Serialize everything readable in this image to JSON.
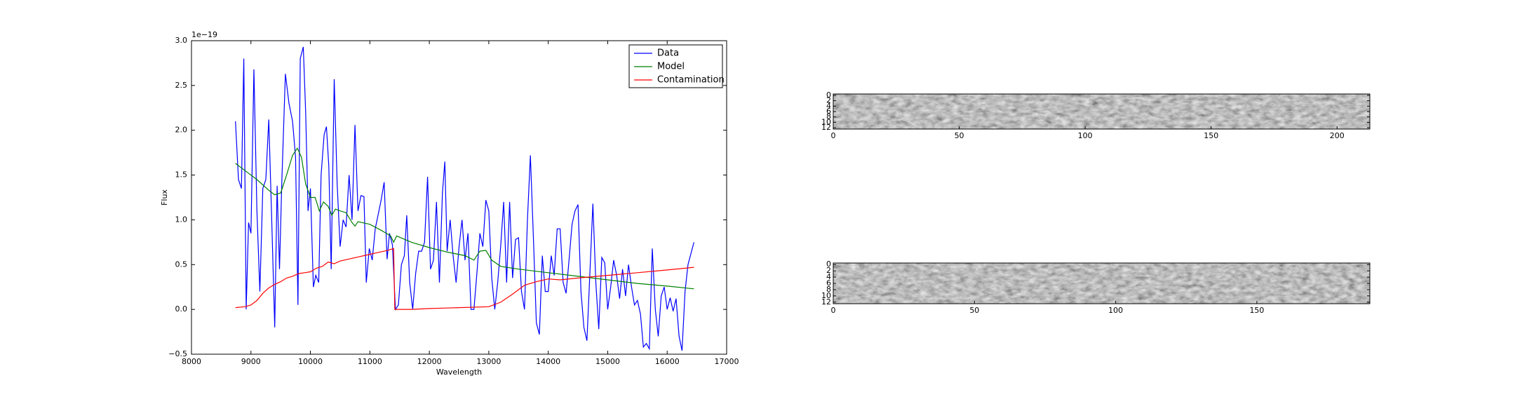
{
  "chart_data": [
    {
      "type": "line",
      "xlabel": "Wavelength",
      "ylabel": "Flux",
      "offset_label": "1e−19",
      "xlim": [
        8000,
        17000
      ],
      "ylim": [
        -0.5,
        3.0
      ],
      "xticks": [
        8000,
        9000,
        10000,
        11000,
        12000,
        13000,
        14000,
        15000,
        16000,
        17000
      ],
      "yticks": [
        {
          "value": -0.5,
          "label": "−0.5"
        },
        {
          "value": 0,
          "label": "0.0"
        },
        0.5,
        {
          "value": 1,
          "label": "1.0"
        },
        1.5,
        {
          "value": 2,
          "label": "2.0"
        },
        2.5,
        {
          "value": 3,
          "label": "3.0"
        }
      ],
      "legend": "upper right",
      "series": [
        {
          "name": "Data",
          "color": "#0000ff",
          "x": [
            8740,
            8790,
            8840,
            8880,
            8920,
            8960,
            9000,
            9050,
            9100,
            9150,
            9200,
            9250,
            9300,
            9350,
            9400,
            9440,
            9480,
            9520,
            9580,
            9640,
            9700,
            9750,
            9790,
            9830,
            9880,
            9920,
            9960,
            10000,
            10050,
            10090,
            10140,
            10180,
            10230,
            10270,
            10310,
            10350,
            10400,
            10450,
            10500,
            10550,
            10600,
            10650,
            10700,
            10750,
            10800,
            10850,
            10900,
            10940,
            10990,
            11040,
            11090,
            11140,
            11190,
            11240,
            11290,
            11330,
            11380,
            11430,
            11480,
            11530,
            11580,
            11620,
            11670,
            11720,
            11770,
            11820,
            11870,
            11920,
            11970,
            12020,
            12070,
            12120,
            12170,
            12220,
            12260,
            12300,
            12350,
            12400,
            12450,
            12500,
            12550,
            12600,
            12650,
            12700,
            12750,
            12800,
            12850,
            12900,
            12950,
            13000,
            13050,
            13100,
            13150,
            13200,
            13250,
            13300,
            13350,
            13400,
            13450,
            13500,
            13550,
            13600,
            13650,
            13700,
            13750,
            13800,
            13850,
            13900,
            13950,
            14000,
            14050,
            14100,
            14150,
            14200,
            14250,
            14300,
            14350,
            14400,
            14450,
            14500,
            14550,
            14600,
            14650,
            14700,
            14750,
            14800,
            14850,
            14900,
            14950,
            15000,
            15050,
            15100,
            15150,
            15200,
            15250,
            15300,
            15350,
            15400,
            15450,
            15500,
            15550,
            15600,
            15650,
            15700,
            15750,
            15800,
            15850,
            15900,
            15950,
            16000,
            16050,
            16100,
            16150,
            16200,
            16250,
            16300,
            16350,
            16450
          ],
          "values": [
            2.1,
            1.45,
            1.35,
            2.8,
            0.0,
            0.97,
            0.85,
            2.68,
            1.1,
            0.2,
            1.35,
            1.45,
            2.12,
            1.0,
            -0.2,
            1.38,
            0.45,
            1.45,
            2.63,
            2.3,
            2.1,
            1.7,
            0.05,
            2.8,
            2.93,
            2.2,
            1.1,
            1.35,
            0.25,
            0.38,
            0.3,
            1.5,
            1.95,
            2.04,
            1.6,
            0.45,
            2.57,
            1.4,
            0.7,
            1.0,
            0.92,
            1.5,
            1.0,
            2.06,
            1.1,
            1.27,
            1.26,
            0.3,
            0.68,
            0.55,
            0.9,
            1.06,
            1.22,
            1.42,
            0.56,
            0.85,
            0.72,
            0.0,
            0.05,
            0.5,
            0.6,
            1.05,
            0.3,
            0.0,
            0.4,
            0.65,
            0.65,
            0.75,
            1.48,
            0.45,
            0.55,
            1.2,
            0.3,
            1.3,
            1.65,
            0.65,
            1.0,
            0.6,
            0.3,
            0.7,
            1.0,
            0.55,
            0.85,
            0.0,
            0.0,
            0.4,
            0.85,
            0.7,
            1.22,
            1.1,
            0.35,
            0.0,
            0.3,
            0.7,
            1.2,
            0.3,
            1.2,
            0.35,
            0.78,
            0.8,
            0.2,
            0.0,
            1.0,
            1.72,
            0.8,
            -0.15,
            -0.28,
            0.6,
            0.2,
            0.2,
            0.6,
            0.38,
            0.9,
            0.9,
            0.3,
            0.18,
            0.55,
            0.95,
            1.1,
            1.17,
            0.2,
            -0.2,
            -0.35,
            0.4,
            1.18,
            0.3,
            -0.22,
            0.58,
            0.52,
            0.0,
            0.25,
            0.55,
            0.38,
            0.12,
            0.45,
            0.15,
            0.5,
            0.25,
            0.05,
            0.1,
            -0.05,
            -0.42,
            -0.38,
            -0.44,
            0.68,
            0.0,
            -0.3,
            0.15,
            0.25,
            0.0,
            0.13,
            -0.02,
            0.12,
            -0.3,
            -0.46,
            0.2,
            0.5,
            0.75
          ]
        },
        {
          "name": "Model",
          "color": "#008000",
          "x": [
            8740,
            8900,
            9100,
            9300,
            9400,
            9500,
            9600,
            9700,
            9780,
            9850,
            9920,
            10000,
            10080,
            10150,
            10220,
            10300,
            10360,
            10420,
            10500,
            10600,
            10700,
            10750,
            10800,
            11000,
            11200,
            11350,
            11400,
            11450,
            11700,
            12000,
            12300,
            12600,
            12750,
            12850,
            12950,
            13050,
            13200,
            13500,
            14000,
            14500,
            15000,
            15500,
            16000,
            16450
          ],
          "values": [
            1.63,
            1.55,
            1.45,
            1.33,
            1.28,
            1.3,
            1.5,
            1.72,
            1.8,
            1.7,
            1.4,
            1.25,
            1.25,
            1.1,
            1.2,
            1.15,
            1.05,
            1.12,
            1.1,
            1.08,
            0.97,
            0.93,
            0.98,
            0.95,
            0.88,
            0.82,
            0.75,
            0.82,
            0.75,
            0.69,
            0.64,
            0.6,
            0.55,
            0.65,
            0.66,
            0.55,
            0.48,
            0.45,
            0.41,
            0.37,
            0.33,
            0.29,
            0.26,
            0.23
          ]
        },
        {
          "name": "Contamination",
          "color": "#ff0000",
          "x": [
            8740,
            8900,
            9000,
            9100,
            9200,
            9300,
            9400,
            9500,
            9600,
            9700,
            9800,
            9900,
            10000,
            10100,
            10200,
            10300,
            10400,
            10500,
            10700,
            10900,
            11100,
            11300,
            11400,
            11420,
            11700,
            12000,
            12500,
            13000,
            13200,
            13400,
            13600,
            13800,
            14000,
            14200,
            14500,
            15000,
            15500,
            16000,
            16450
          ],
          "values": [
            0.02,
            0.03,
            0.05,
            0.1,
            0.18,
            0.24,
            0.28,
            0.31,
            0.35,
            0.37,
            0.4,
            0.41,
            0.42,
            0.46,
            0.48,
            0.53,
            0.51,
            0.54,
            0.57,
            0.6,
            0.63,
            0.66,
            0.68,
            0.0,
            0.0,
            0.01,
            0.02,
            0.03,
            0.08,
            0.17,
            0.27,
            0.31,
            0.34,
            0.33,
            0.35,
            0.38,
            0.41,
            0.44,
            0.47
          ]
        }
      ]
    },
    {
      "type": "image",
      "xlim": [
        0,
        213
      ],
      "ylim": [
        12.5,
        -0.5
      ],
      "xticks": [
        0,
        50,
        100,
        150,
        200
      ],
      "yticks": [
        0,
        2,
        4,
        6,
        8,
        10,
        12
      ]
    },
    {
      "type": "image",
      "xlim": [
        0,
        190
      ],
      "ylim": [
        12.5,
        -0.5
      ],
      "xticks": [
        0,
        50,
        100,
        150
      ],
      "yticks": [
        0,
        2,
        4,
        6,
        8,
        10,
        12
      ]
    }
  ]
}
